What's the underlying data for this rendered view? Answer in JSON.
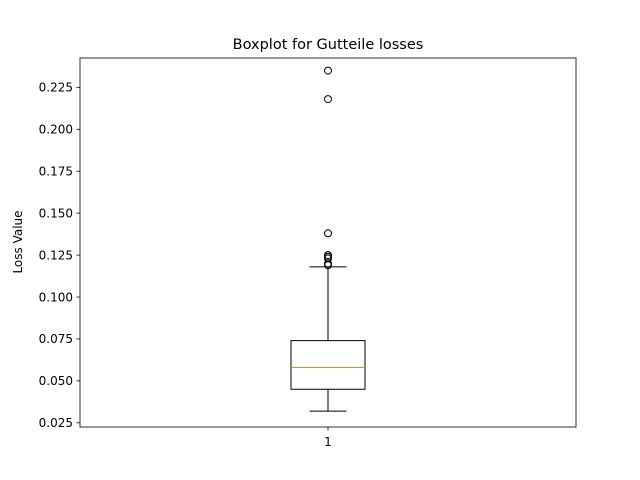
{
  "chart_data": {
    "type": "boxplot",
    "title": "Boxplot for Gutteile losses",
    "xlabel": "",
    "ylabel": "Loss Value",
    "categories": [
      "1"
    ],
    "ylim": [
      0.0225,
      0.2425
    ],
    "yticks": [
      "0.025",
      "0.050",
      "0.075",
      "0.100",
      "0.125",
      "0.150",
      "0.175",
      "0.200",
      "0.225"
    ],
    "grid": false,
    "boxes": [
      {
        "category": "1",
        "whisker_low": 0.032,
        "q1": 0.045,
        "median": 0.058,
        "q3": 0.074,
        "whisker_high": 0.118,
        "outliers": [
          0.119,
          0.12,
          0.123,
          0.124,
          0.125,
          0.138,
          0.218,
          0.235
        ]
      }
    ],
    "colors": {
      "box": "#000000",
      "median": "#ff7f0e",
      "outlier": "#000000"
    }
  }
}
